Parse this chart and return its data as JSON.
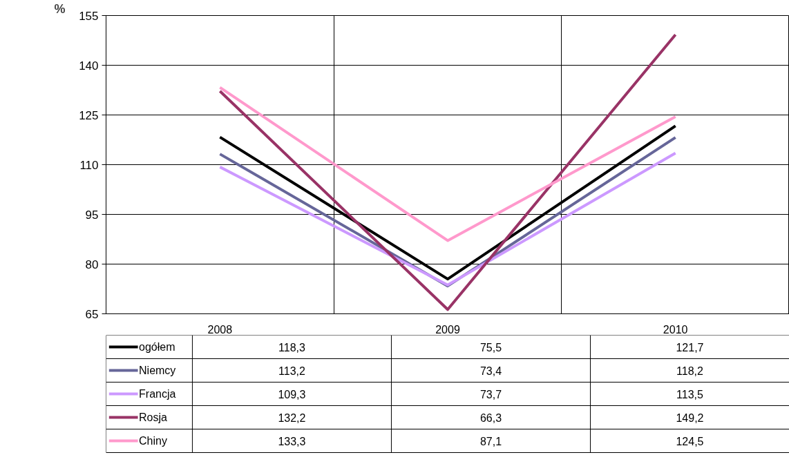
{
  "chart_data": {
    "type": "line",
    "ylabel": "%",
    "categories": [
      "2008",
      "2009",
      "2010"
    ],
    "series": [
      {
        "name": "ogółem",
        "color": "#000000",
        "values": [
          118.3,
          75.5,
          121.7
        ],
        "value_labels": [
          "118,3",
          "75,5",
          "121,7"
        ]
      },
      {
        "name": "Niemcy",
        "color": "#666699",
        "values": [
          113.2,
          73.4,
          118.2
        ],
        "value_labels": [
          "113,2",
          "73,4",
          "118,2"
        ]
      },
      {
        "name": "Francja",
        "color": "#cc99ff",
        "values": [
          109.3,
          73.7,
          113.5
        ],
        "value_labels": [
          "109,3",
          "73,7",
          "113,5"
        ]
      },
      {
        "name": "Rosja",
        "color": "#993366",
        "values": [
          132.2,
          66.3,
          149.2
        ],
        "value_labels": [
          "132,2",
          "66,3",
          "149,2"
        ]
      },
      {
        "name": "Chiny",
        "color": "#ff99cc",
        "values": [
          133.3,
          87.1,
          124.5
        ],
        "value_labels": [
          "133,3",
          "87,1",
          "124,5"
        ]
      }
    ],
    "ylim": [
      65,
      155
    ],
    "yticks": [
      65,
      80,
      95,
      110,
      125,
      140,
      155
    ],
    "grid": true,
    "legend": "bottom",
    "marker": "none",
    "line_style": "solid"
  }
}
